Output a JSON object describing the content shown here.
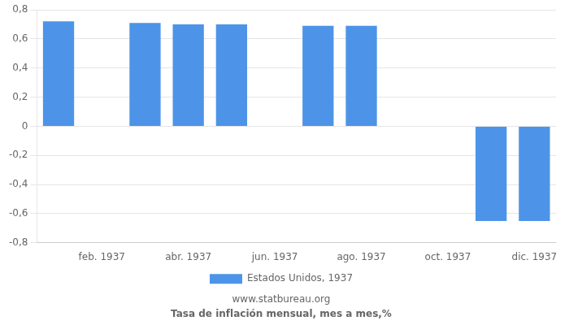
{
  "chart_data": {
    "type": "bar",
    "title": "Tasa de inflación mensual, mes a mes,%",
    "subtitle": "www.statbureau.org",
    "categories": [
      null,
      "feb. 1937",
      null,
      "abr. 1937",
      null,
      "jun. 1937",
      null,
      "ago. 1937",
      null,
      "oct. 1937",
      null,
      "dic. 1937"
    ],
    "series": [
      {
        "name": "Estados Unidos, 1937",
        "color": "#4d94e8",
        "values": [
          0.72,
          null,
          0.71,
          0.7,
          0.7,
          null,
          0.69,
          0.69,
          null,
          null,
          -0.65,
          -0.65
        ]
      }
    ],
    "ylim": [
      -0.8,
      0.8
    ],
    "yticks": [
      {
        "value": -0.8,
        "label": "-0,8"
      },
      {
        "value": -0.6,
        "label": "-0,6"
      },
      {
        "value": -0.4,
        "label": "-0,4"
      },
      {
        "value": -0.2,
        "label": "-0,2"
      },
      0,
      {
        "value": 0.2,
        "label": "0,2"
      },
      {
        "value": 0.4,
        "label": "0,4"
      },
      {
        "value": 0.6,
        "label": "0,6"
      },
      {
        "value": 0.8,
        "label": "0,8"
      }
    ],
    "grid": true,
    "legend": "bottom"
  }
}
